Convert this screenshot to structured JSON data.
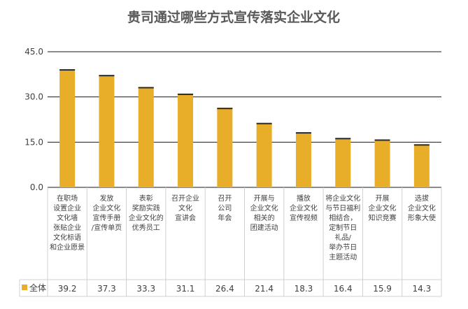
{
  "chart_data": {
    "type": "bar",
    "title": "贵司通过哪些方式宣传落实企业文化",
    "ylim": [
      0,
      45
    ],
    "yticks": [
      "0.0",
      "15.0",
      "30.0",
      "45.0"
    ],
    "grid": true,
    "categories": [
      [
        "在职场",
        "设置企业",
        "文化墙",
        "张贴企业",
        "文化标语",
        "和企业愿景"
      ],
      [
        "发放",
        "企业文化",
        "宣传手册",
        "/宣传单页"
      ],
      [
        "表彰",
        "奖励实践",
        "企业文化的",
        "优秀员工"
      ],
      [
        "召开企业",
        "文化",
        "宣讲会"
      ],
      [
        "召开",
        "公司",
        "年会"
      ],
      [
        "开展与",
        "企业文化",
        "相关的",
        "团建活动"
      ],
      [
        "播放",
        "企业文化",
        "宣传视频"
      ],
      [
        "将企业文化",
        "与节日福利",
        "相结合，",
        "定制节日",
        "礼品/",
        "举办节日",
        "主题活动"
      ],
      [
        "开展",
        "企业文化",
        "知识竞赛"
      ],
      [
        "选拔",
        "企业文化",
        "形象大使"
      ]
    ],
    "series": [
      {
        "name": "全体",
        "values": [
          39.2,
          37.3,
          33.3,
          31.1,
          26.4,
          21.4,
          18.3,
          16.4,
          15.9,
          14.3
        ],
        "labels": [
          "39.2",
          "37.3",
          "33.3",
          "31.1",
          "26.4",
          "21.4",
          "18.3",
          "16.4",
          "15.9",
          "14.3"
        ]
      }
    ],
    "colors": {
      "bar": "#E8AE2A",
      "bar_top": "#2B2B2B",
      "grid": "#1A1A1A",
      "table_border": "#D0D0D0"
    }
  }
}
